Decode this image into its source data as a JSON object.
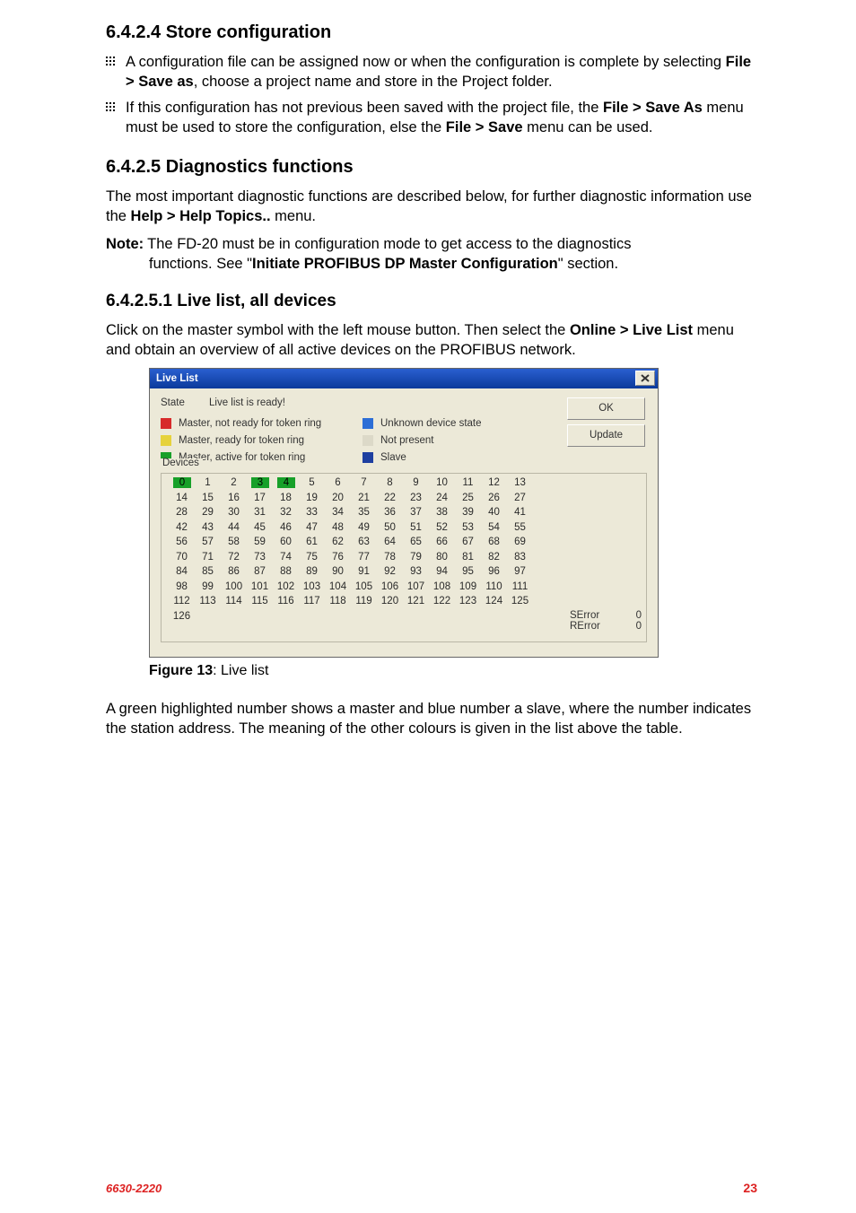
{
  "sections": {
    "store": {
      "heading": "6.4.2.4  Store configuration",
      "b1_pre": "A configuration file can be assigned now or when the configuration is complete by selecting ",
      "b1_bold1": "File > Save as",
      "b1_post": ", choose a project name and store in the Project  folder.",
      "b2_pre": "If this configuration has not previous been saved with the project file, the ",
      "b2_bold1": "File > Save As",
      "b2_mid": " menu must be used to store the configuration, else the ",
      "b2_bold2": "File > Save",
      "b2_post": " menu can be used."
    },
    "diag": {
      "heading": "6.4.2.5  Diagnostics functions",
      "p1_pre": "The most important diagnostic functions are described below, for further diagnostic information use the ",
      "p1_bold": "Help > Help Topics..",
      "p1_post": " menu.",
      "note_label": "Note:",
      "note_a": " The FD-20 must be in configuration mode to get access to the diagnostics",
      "note_b_pre": "functions. See \"",
      "note_b_bold": "Initiate PROFIBUS DP Master Configuration",
      "note_b_post": "\" section."
    },
    "live": {
      "heading": "6.4.2.5.1  Live list, all devices",
      "p1_pre": "Click on the master symbol with the left mouse button. Then select the ",
      "p1_bold": "Online > Live List",
      "p1_post": " menu and obtain an overview of all active devices on the PROFIBUS network."
    },
    "after": {
      "p": "A green highlighted number shows a master and blue number a slave, where the number indicates the station address. The meaning of the other colours is given in the list above the table."
    }
  },
  "dialog": {
    "title": "Live List",
    "state_label": "State",
    "state_value": "Live list is ready!",
    "legend": {
      "left1": {
        "color": "#d72a2a",
        "text": "Master, not ready for token ring"
      },
      "left2": {
        "color": "#e6d23c",
        "text": "Master, ready for token ring"
      },
      "left3": {
        "color": "#17a029",
        "text": "Master, active for token ring"
      },
      "right1": {
        "color": "#2c6ed6",
        "text": "Unknown device state"
      },
      "right2": {
        "color": "#dcd9c8",
        "text": "Not present"
      },
      "right3": {
        "color": "#1e3fa0",
        "text": "Slave"
      }
    },
    "buttons": {
      "ok": "OK",
      "update": "Update"
    },
    "fieldset_label": "Devices",
    "rows": [
      [
        "0",
        "1",
        "2",
        "3",
        "4",
        "5",
        "6",
        "7",
        "8",
        "9",
        "10",
        "11",
        "12",
        "13"
      ],
      [
        "14",
        "15",
        "16",
        "17",
        "18",
        "19",
        "20",
        "21",
        "22",
        "23",
        "24",
        "25",
        "26",
        "27"
      ],
      [
        "28",
        "29",
        "30",
        "31",
        "32",
        "33",
        "34",
        "35",
        "36",
        "37",
        "38",
        "39",
        "40",
        "41"
      ],
      [
        "42",
        "43",
        "44",
        "45",
        "46",
        "47",
        "48",
        "49",
        "50",
        "51",
        "52",
        "53",
        "54",
        "55"
      ],
      [
        "56",
        "57",
        "58",
        "59",
        "60",
        "61",
        "62",
        "63",
        "64",
        "65",
        "66",
        "67",
        "68",
        "69"
      ],
      [
        "70",
        "71",
        "72",
        "73",
        "74",
        "75",
        "76",
        "77",
        "78",
        "79",
        "80",
        "81",
        "82",
        "83"
      ],
      [
        "84",
        "85",
        "86",
        "87",
        "88",
        "89",
        "90",
        "91",
        "92",
        "93",
        "94",
        "95",
        "96",
        "97"
      ],
      [
        "98",
        "99",
        "100",
        "101",
        "102",
        "103",
        "104",
        "105",
        "106",
        "107",
        "108",
        "109",
        "110",
        "111"
      ],
      [
        "112",
        "113",
        "114",
        "115",
        "116",
        "117",
        "118",
        "119",
        "120",
        "121",
        "122",
        "123",
        "124",
        "125"
      ],
      [
        "126",
        "",
        "",
        "",
        "",
        "",
        "",
        "",
        "",
        "",
        "",
        "",
        "",
        ""
      ]
    ],
    "highlights": {
      "0-0": true,
      "0-3": true,
      "0-4": true
    },
    "errors": {
      "se_label": "SError",
      "se_val": "0",
      "re_label": "RError",
      "re_val": "0"
    }
  },
  "figure": {
    "label": "Figure 13",
    "text": ": Live list"
  },
  "footer": {
    "doc": "6630-2220",
    "page": "23"
  }
}
